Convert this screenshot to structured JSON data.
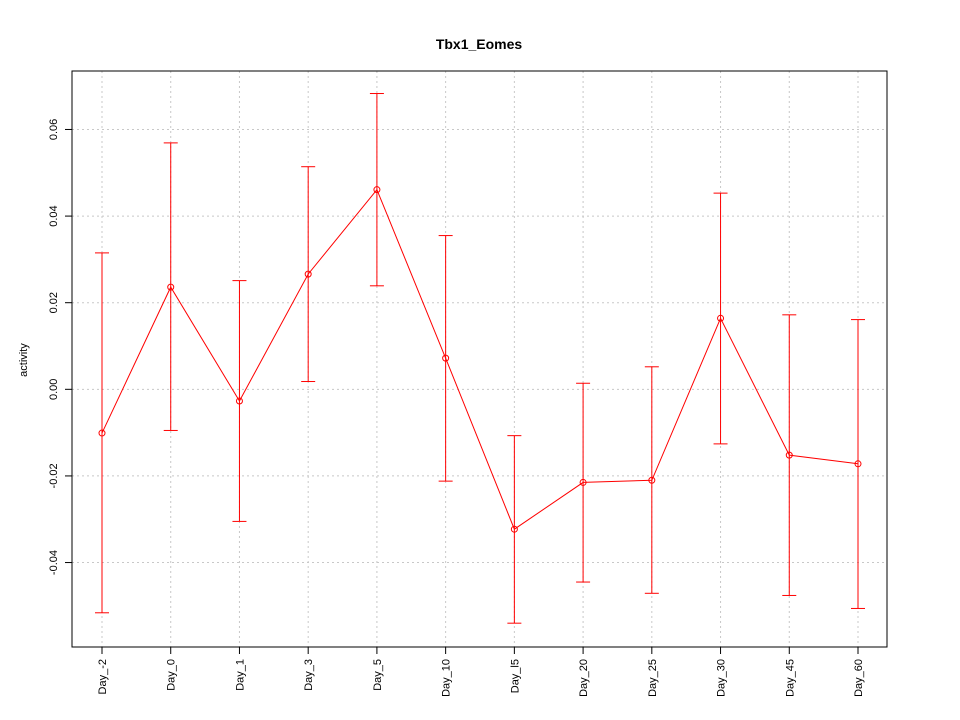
{
  "chart_data": {
    "type": "line",
    "title": "Tbx1_Eomes",
    "xlabel": "",
    "ylabel": "activity",
    "categories": [
      "Day_-2",
      "Day_0",
      "Day_1",
      "Day_3",
      "Day_5",
      "Day_10",
      "Day_l5",
      "Day_20",
      "Day_25",
      "Day_30",
      "Day_45",
      "Day_60"
    ],
    "series": [
      {
        "values": [
          -0.0101,
          0.0236,
          -0.0027,
          0.0266,
          0.0461,
          0.0072,
          -0.0323,
          -0.0215,
          -0.021,
          0.0164,
          -0.0152,
          -0.0172
        ],
        "upper": [
          0.0315,
          0.0569,
          0.0251,
          0.0514,
          0.0683,
          0.0355,
          -0.0107,
          0.0014,
          0.0052,
          0.0453,
          0.0172,
          0.0161
        ],
        "lower": [
          -0.0516,
          -0.0095,
          -0.0305,
          0.0018,
          0.0239,
          -0.0212,
          -0.054,
          -0.0445,
          -0.0471,
          -0.0126,
          -0.0476,
          -0.0506
        ]
      }
    ],
    "yticks": [
      -0.04,
      -0.02,
      0.0,
      0.02,
      0.04,
      0.06
    ],
    "ytick_labels": [
      "-0.04",
      "-0.02",
      "0.00",
      "0.02",
      "0.04",
      "0.06"
    ],
    "ylim": [
      -0.0595,
      0.0735
    ],
    "grid": true,
    "colors": {
      "series": "#ff0000",
      "grid": "#c8c8c8",
      "axis": "#000000"
    }
  }
}
